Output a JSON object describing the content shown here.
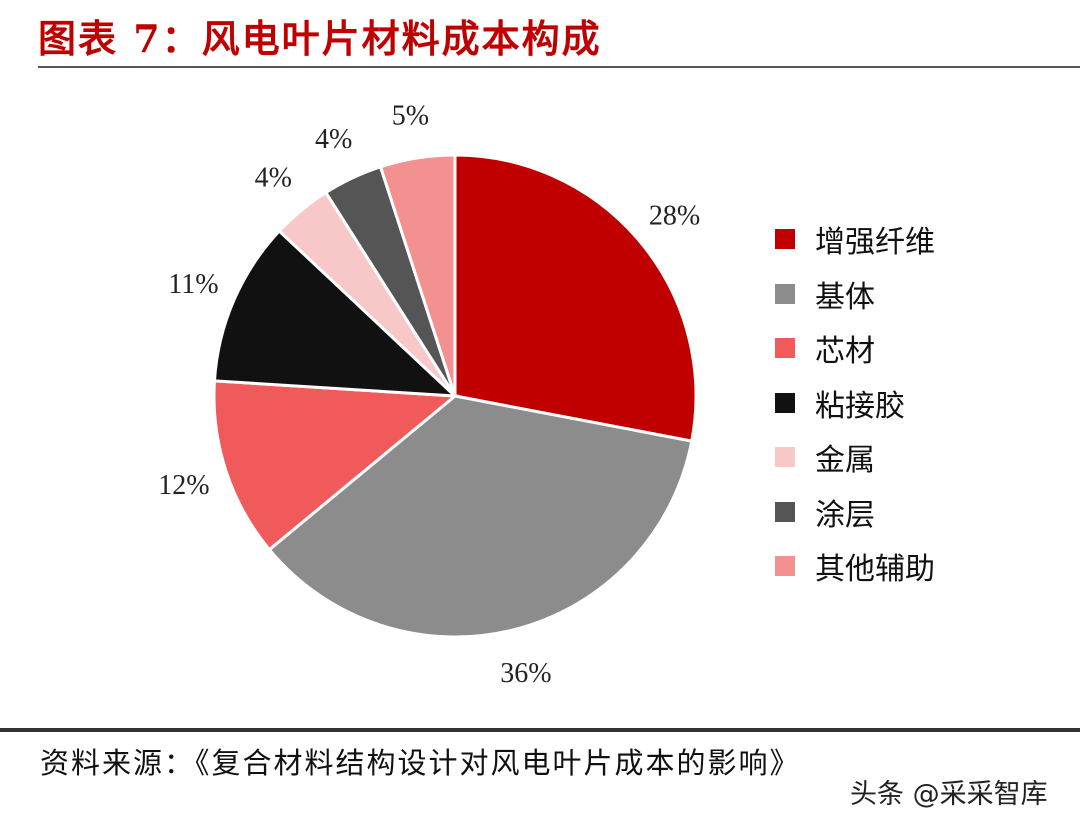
{
  "title": "图表 7：风电叶片材料成本构成",
  "source": "资料来源：《复合材料结构设计对风电叶片成本的影响》",
  "watermark": "头条 @采采智库",
  "chart_data": {
    "type": "pie",
    "start": "top",
    "direction": "clockwise",
    "legend_position": "right",
    "categories": [
      "增强纤维",
      "基体",
      "芯材",
      "粘接胶",
      "金属",
      "涂层",
      "其他辅助"
    ],
    "values": [
      28,
      36,
      12,
      11,
      4,
      4,
      5
    ],
    "labels": [
      "28%",
      "36%",
      "12%",
      "11%",
      "4%",
      "4%",
      "5%"
    ],
    "colors": [
      "#c00000",
      "#8c8c8c",
      "#f05a5a",
      "#111111",
      "#f8c8c8",
      "#555555",
      "#f39090"
    ]
  }
}
